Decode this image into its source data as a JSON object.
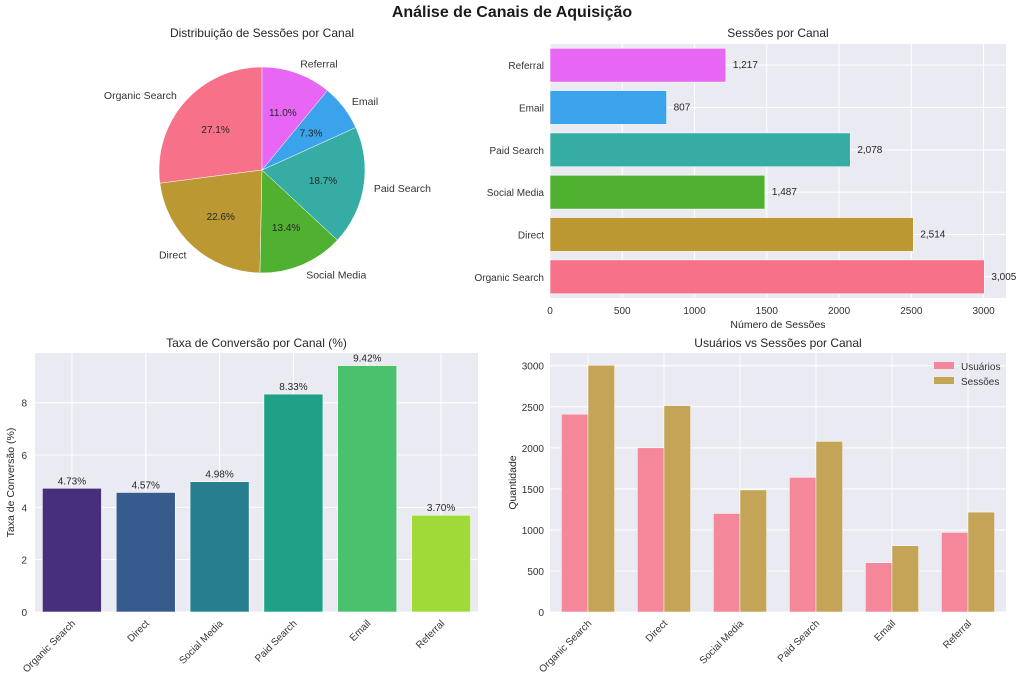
{
  "suptitle": "Análise de Canais de Aquisição",
  "chart_data": [
    {
      "id": "pie",
      "type": "pie",
      "title": "Distribuição de Sessões por Canal",
      "labels": [
        "Organic Search",
        "Direct",
        "Social Media",
        "Paid Search",
        "Email",
        "Referral"
      ],
      "values": [
        3005,
        2514,
        1487,
        2078,
        807,
        1217
      ],
      "percent_labels": [
        "27.1%",
        "22.6%",
        "13.4%",
        "18.7%",
        "7.3%",
        "11.0%"
      ],
      "colors": [
        "#f77189",
        "#bb9832",
        "#50b131",
        "#36ada4",
        "#3ba3ec",
        "#e866f4"
      ],
      "start_angle_deg": 90,
      "direction": "counterclockwise"
    },
    {
      "id": "hbar",
      "type": "bar",
      "orientation": "horizontal",
      "title": "Sessões por Canal",
      "categories": [
        "Organic Search",
        "Direct",
        "Social Media",
        "Paid Search",
        "Email",
        "Referral"
      ],
      "values": [
        3005,
        2514,
        1487,
        2078,
        807,
        1217
      ],
      "value_labels": [
        "3,005",
        "2,514",
        "1,487",
        "2,078",
        "807",
        "1,217"
      ],
      "colors": [
        "#f77189",
        "#bb9832",
        "#50b131",
        "#36ada4",
        "#3ba3ec",
        "#e866f4"
      ],
      "xlabel": "Número de Sessões",
      "ylabel": "",
      "xlim": [
        0,
        3155
      ],
      "xticks": [
        0,
        500,
        1000,
        1500,
        2000,
        2500,
        3000
      ],
      "grid": true
    },
    {
      "id": "conv",
      "type": "bar",
      "title": "Taxa de Conversão por Canal (%)",
      "categories": [
        "Organic Search",
        "Direct",
        "Social Media",
        "Paid Search",
        "Email",
        "Referral"
      ],
      "values": [
        4.73,
        4.57,
        4.98,
        8.33,
        9.42,
        3.7
      ],
      "value_labels": [
        "4.73%",
        "4.57%",
        "4.98%",
        "8.33%",
        "9.42%",
        "3.70%"
      ],
      "colors": [
        "#472f7d",
        "#375b8d",
        "#277f8e",
        "#1fa187",
        "#4ac16d",
        "#a0da39"
      ],
      "xlabel": "",
      "ylabel": "Taxa de Conversão (%)",
      "ylim": [
        0,
        9.9
      ],
      "yticks": [
        0,
        2,
        4,
        6,
        8
      ],
      "grid": true
    },
    {
      "id": "grouped",
      "type": "bar",
      "title": "Usuários vs Sessões por Canal",
      "categories": [
        "Organic Search",
        "Direct",
        "Social Media",
        "Paid Search",
        "Email",
        "Referral"
      ],
      "series": [
        {
          "name": "Usuários",
          "values": [
            2410,
            2000,
            1200,
            1640,
            600,
            970
          ],
          "color": "#f4879a"
        },
        {
          "name": "Sessões",
          "values": [
            3005,
            2514,
            1487,
            2078,
            807,
            1217
          ],
          "color": "#c4a457"
        }
      ],
      "xlabel": "",
      "ylabel": "Quantidade",
      "ylim": [
        0,
        3155
      ],
      "yticks": [
        0,
        500,
        1000,
        1500,
        2000,
        2500,
        3000
      ],
      "legend": "top-right",
      "grid": true
    }
  ]
}
